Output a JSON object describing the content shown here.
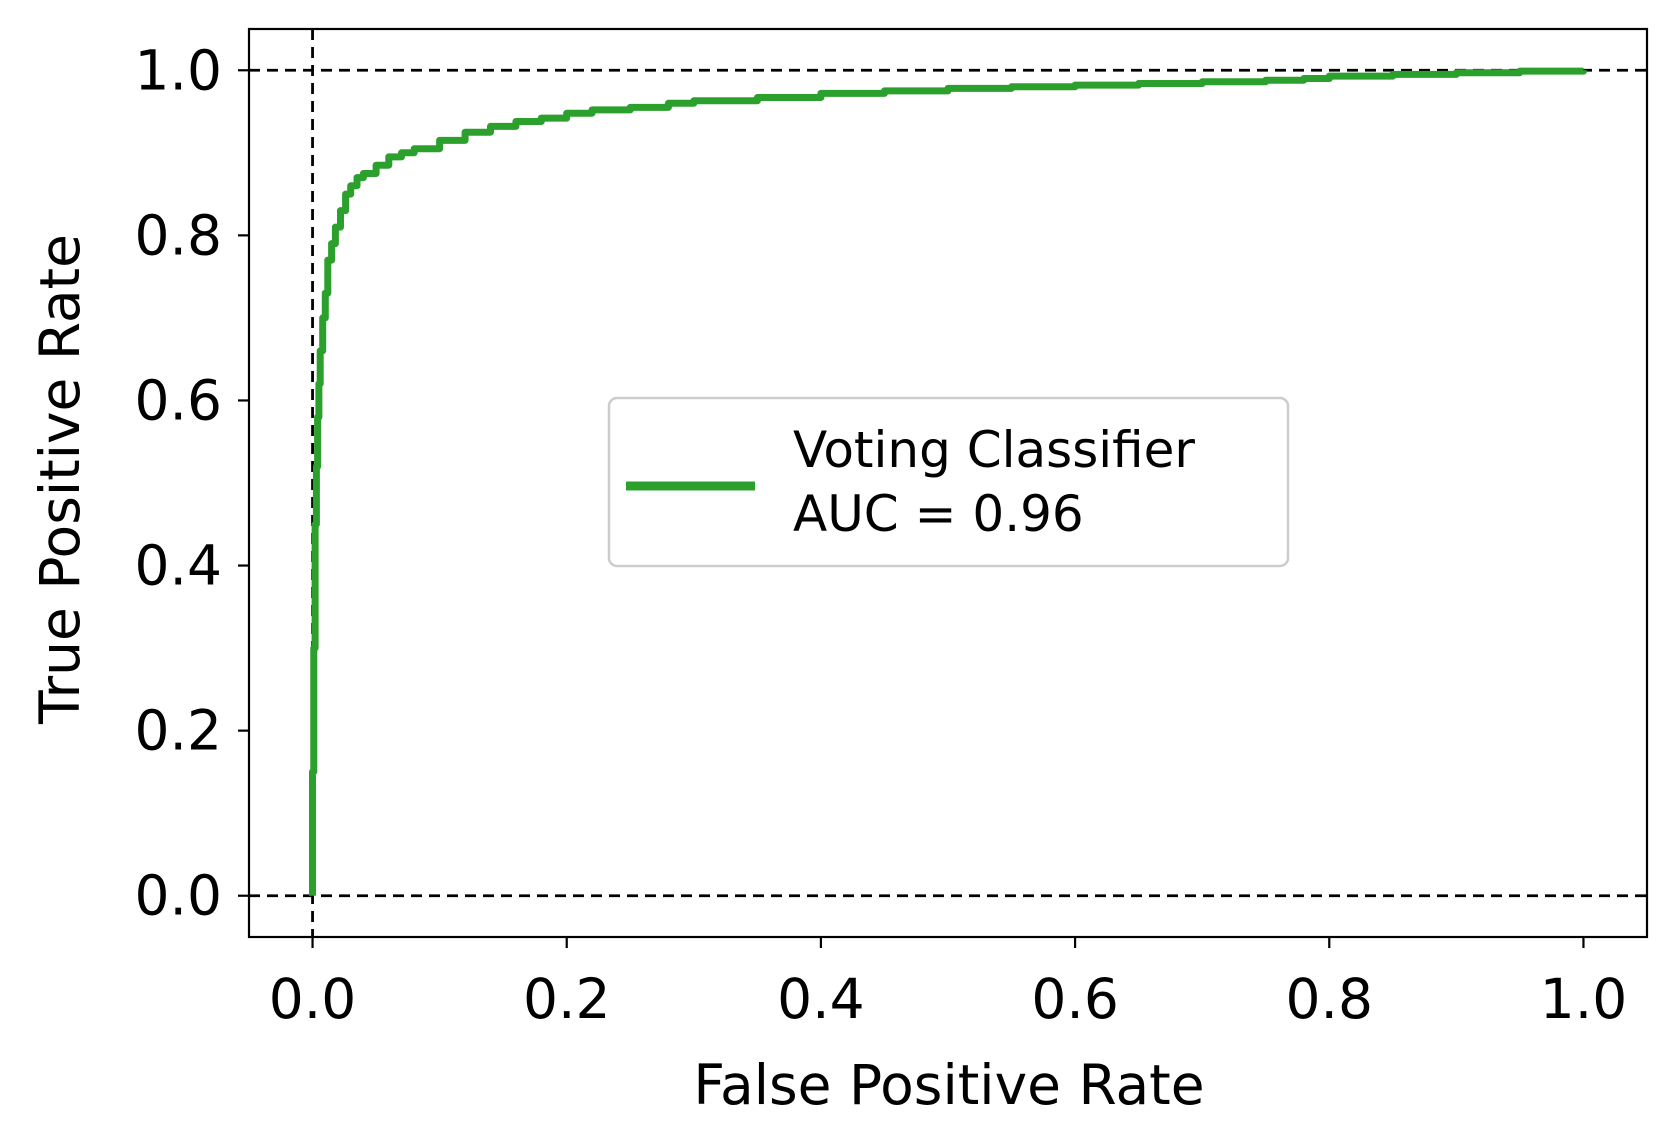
{
  "chart_data": {
    "type": "line",
    "xlabel": "False Positive Rate",
    "ylabel": "True Positive Rate",
    "xlim": [
      -0.05,
      1.05
    ],
    "ylim": [
      -0.05,
      1.05
    ],
    "x_ticks": [
      "0.0",
      "0.2",
      "0.4",
      "0.6",
      "0.8",
      "1.0"
    ],
    "y_ticks": [
      "0.0",
      "0.2",
      "0.4",
      "0.6",
      "0.8",
      "1.0"
    ],
    "grid": false,
    "legend_position": "center",
    "reference_lines": {
      "horizontal": [
        0.0,
        1.0
      ],
      "vertical": [
        0.0
      ],
      "color": "#000000",
      "style": "dashed"
    },
    "series": [
      {
        "legend_lines": [
          "Voting Classifier",
          "AUC = 0.96"
        ],
        "color": "#2ca02c",
        "x": [
          0.0,
          0.0,
          0.001,
          0.002,
          0.003,
          0.004,
          0.005,
          0.006,
          0.008,
          0.01,
          0.012,
          0.015,
          0.018,
          0.022,
          0.026,
          0.03,
          0.035,
          0.04,
          0.05,
          0.06,
          0.07,
          0.08,
          0.1,
          0.12,
          0.14,
          0.16,
          0.18,
          0.2,
          0.22,
          0.25,
          0.28,
          0.3,
          0.35,
          0.4,
          0.45,
          0.5,
          0.55,
          0.6,
          0.65,
          0.7,
          0.75,
          0.78,
          0.8,
          0.85,
          0.9,
          0.95,
          1.0
        ],
        "y": [
          0.0,
          0.15,
          0.3,
          0.45,
          0.52,
          0.58,
          0.62,
          0.66,
          0.7,
          0.73,
          0.77,
          0.79,
          0.81,
          0.83,
          0.85,
          0.86,
          0.87,
          0.875,
          0.885,
          0.895,
          0.9,
          0.905,
          0.915,
          0.925,
          0.932,
          0.938,
          0.942,
          0.948,
          0.952,
          0.955,
          0.96,
          0.963,
          0.967,
          0.972,
          0.975,
          0.978,
          0.98,
          0.982,
          0.984,
          0.986,
          0.988,
          0.99,
          0.993,
          0.995,
          0.997,
          0.999,
          1.0
        ]
      }
    ]
  }
}
